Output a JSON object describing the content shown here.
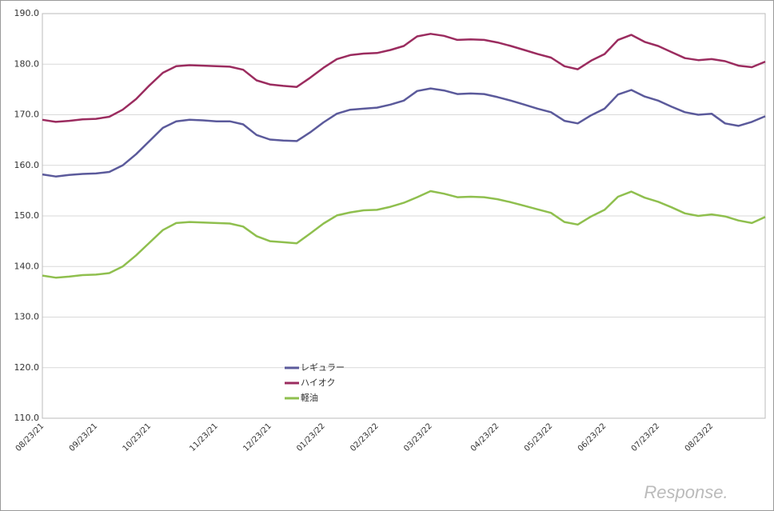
{
  "chart_data": {
    "type": "line",
    "categories": [
      "08/23/21",
      null,
      null,
      null,
      "09/23/21",
      null,
      null,
      null,
      "10/23/21",
      null,
      null,
      null,
      null,
      "11/23/21",
      null,
      null,
      null,
      "12/23/21",
      null,
      null,
      null,
      "01/23/22",
      null,
      null,
      null,
      "02/23/22",
      null,
      null,
      null,
      "03/23/22",
      null,
      null,
      null,
      null,
      "04/23/22",
      null,
      null,
      null,
      "05/23/22",
      null,
      null,
      null,
      "06/23/22",
      null,
      null,
      null,
      "07/23/22",
      null,
      null,
      null,
      "08/23/22",
      null,
      null,
      null,
      null
    ],
    "series": [
      {
        "name": "レギュラー",
        "color": "#5b5a9b",
        "values": [
          158.2,
          157.8,
          158.1,
          158.3,
          158.4,
          158.7,
          160.0,
          162.2,
          164.8,
          167.4,
          168.7,
          169.0,
          168.9,
          168.7,
          168.7,
          168.1,
          166.0,
          165.1,
          164.9,
          164.8,
          166.5,
          168.5,
          170.2,
          171.0,
          171.2,
          171.4,
          172.0,
          172.8,
          174.7,
          175.2,
          174.8,
          174.1,
          174.2,
          174.1,
          173.5,
          172.8,
          172.0,
          171.2,
          170.5,
          168.8,
          168.3,
          169.9,
          171.2,
          174.0,
          174.9,
          173.6,
          172.8,
          171.6,
          170.5,
          170.0,
          170.2,
          168.3,
          167.8,
          168.6,
          169.7
        ]
      },
      {
        "name": "ハイオク",
        "color": "#9b2c5f",
        "values": [
          169.0,
          168.6,
          168.8,
          169.1,
          169.2,
          169.6,
          171.0,
          173.1,
          175.8,
          178.3,
          179.6,
          179.8,
          179.7,
          179.6,
          179.5,
          178.9,
          176.8,
          176.0,
          175.7,
          175.5,
          177.3,
          179.3,
          181.0,
          181.8,
          182.1,
          182.2,
          182.8,
          183.6,
          185.5,
          186.0,
          185.6,
          184.8,
          184.9,
          184.8,
          184.3,
          183.6,
          182.8,
          182.0,
          181.3,
          179.6,
          179.0,
          180.7,
          182.0,
          184.8,
          185.8,
          184.4,
          183.6,
          182.4,
          181.2,
          180.8,
          181.0,
          180.6,
          179.7,
          179.4,
          180.5
        ]
      },
      {
        "name": "軽油",
        "color": "#8fbf4e",
        "values": [
          138.2,
          137.8,
          138.0,
          138.3,
          138.4,
          138.7,
          140.0,
          142.2,
          144.7,
          147.2,
          148.6,
          148.8,
          148.7,
          148.6,
          148.5,
          147.9,
          146.0,
          145.0,
          144.8,
          144.6,
          146.5,
          148.5,
          150.1,
          150.7,
          151.1,
          151.2,
          151.8,
          152.6,
          153.7,
          154.9,
          154.4,
          153.7,
          153.8,
          153.7,
          153.3,
          152.7,
          152.0,
          151.3,
          150.6,
          148.8,
          148.3,
          149.9,
          151.2,
          153.8,
          154.8,
          153.6,
          152.8,
          151.7,
          150.5,
          150.0,
          150.3,
          149.9,
          149.1,
          148.6,
          149.8
        ]
      }
    ],
    "ylim": [
      110,
      190
    ],
    "yticks": [
      {
        "value": 110,
        "label": "110.0"
      },
      {
        "value": 120,
        "label": "120.0"
      },
      {
        "value": 130,
        "label": "130.0"
      },
      {
        "value": 140,
        "label": "140.0"
      },
      {
        "value": 150,
        "label": "150.0"
      },
      {
        "value": 160,
        "label": "160.0"
      },
      {
        "value": 170,
        "label": "170.0"
      },
      {
        "value": 180,
        "label": "180.0"
      },
      {
        "value": 190,
        "label": "190.0"
      }
    ],
    "grid": true,
    "watermark": "Response."
  }
}
